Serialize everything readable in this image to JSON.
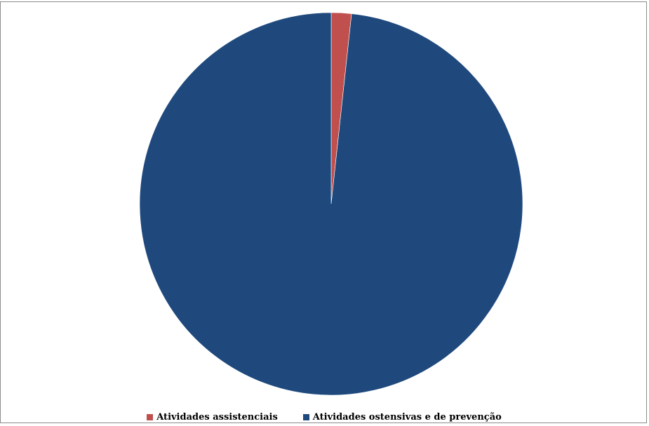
{
  "chart_data": {
    "type": "pie",
    "title": "",
    "slices": [
      {
        "label": "Atividades assistenciais",
        "value": 1.7,
        "color": "#c0504d"
      },
      {
        "label": "Atividades ostensivas e de prevenção",
        "value": 98.3,
        "color": "#1f497d"
      }
    ],
    "start_angle_deg": 0,
    "direction": "clockwise",
    "legend_position": "bottom"
  }
}
